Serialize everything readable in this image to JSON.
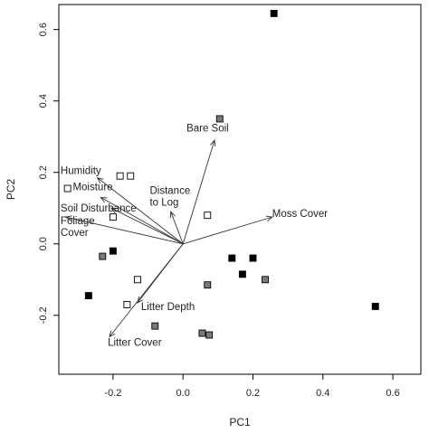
{
  "chart_data": {
    "type": "scatter",
    "title": "",
    "xlabel": "PC1",
    "ylabel": "PC2",
    "xlim": [
      -0.355,
      0.68
    ],
    "ylim": [
      -0.365,
      0.67
    ],
    "x_ticks": [
      -0.2,
      0.0,
      0.2,
      0.4,
      0.6
    ],
    "x_tick_labels": [
      "-0.2",
      "0.0",
      "0.2",
      "0.4",
      "0.6"
    ],
    "y_ticks": [
      -0.2,
      0.0,
      0.2,
      0.4,
      0.6
    ],
    "y_tick_labels": [
      "-0.2",
      "0.0",
      "0.2",
      "0.4",
      "0.6"
    ],
    "grid": false,
    "legend": "none",
    "series": [
      {
        "marker": "filled-square",
        "color": "#000000",
        "points": [
          {
            "x": 0.26,
            "y": 0.645
          },
          {
            "x": -0.2,
            "y": -0.02
          },
          {
            "x": -0.27,
            "y": -0.145
          },
          {
            "x": 0.14,
            "y": -0.04
          },
          {
            "x": 0.2,
            "y": -0.04
          },
          {
            "x": 0.17,
            "y": -0.085
          },
          {
            "x": 0.55,
            "y": -0.175
          }
        ]
      },
      {
        "marker": "gray-square",
        "color": "#7a7a7a",
        "points": [
          {
            "x": 0.105,
            "y": 0.35
          },
          {
            "x": -0.23,
            "y": -0.035
          },
          {
            "x": 0.07,
            "y": -0.115
          },
          {
            "x": 0.235,
            "y": -0.1
          },
          {
            "x": -0.08,
            "y": -0.23
          },
          {
            "x": 0.055,
            "y": -0.25
          },
          {
            "x": 0.075,
            "y": -0.255
          }
        ]
      },
      {
        "marker": "open-square",
        "color": "#ffffff",
        "points": [
          {
            "x": -0.18,
            "y": 0.19
          },
          {
            "x": -0.15,
            "y": 0.19
          },
          {
            "x": -0.33,
            "y": 0.155
          },
          {
            "x": -0.2,
            "y": 0.075
          },
          {
            "x": 0.07,
            "y": 0.08
          },
          {
            "x": -0.13,
            "y": -0.1
          },
          {
            "x": -0.16,
            "y": -0.17
          }
        ]
      }
    ],
    "vectors": [
      {
        "label": "Bare Soil",
        "x": 0.09,
        "y": 0.29
      },
      {
        "label": "Humidity",
        "x": -0.245,
        "y": 0.185
      },
      {
        "label": "Moisture",
        "x": -0.235,
        "y": 0.13
      },
      {
        "label": "Soil Disturbance",
        "x": -0.205,
        "y": 0.1
      },
      {
        "label": "Foliage Cover",
        "x": -0.335,
        "y": 0.075
      },
      {
        "label": "Distance to Log",
        "x": -0.035,
        "y": 0.09
      },
      {
        "label": "Moss Cover",
        "x": 0.255,
        "y": 0.075
      },
      {
        "label": "Litter Depth",
        "x": -0.13,
        "y": -0.165
      },
      {
        "label": "Litter Cover",
        "x": -0.21,
        "y": -0.26
      }
    ],
    "vector_text": [
      {
        "lines": [
          "Bare Soil"
        ],
        "x": 0.01,
        "y": 0.315,
        "anchor": "start"
      },
      {
        "lines": [
          "Humidity"
        ],
        "x": -0.35,
        "y": 0.195,
        "anchor": "start"
      },
      {
        "lines": [
          "Moisture"
        ],
        "x": -0.315,
        "y": 0.15,
        "anchor": "start"
      },
      {
        "lines": [
          "Distance",
          "to Log"
        ],
        "x": -0.095,
        "y": 0.14,
        "anchor": "start"
      },
      {
        "lines": [
          "Soil Disturbance"
        ],
        "x": -0.35,
        "y": 0.09,
        "anchor": "start"
      },
      {
        "lines": [
          "Foliage",
          "Cover"
        ],
        "x": -0.35,
        "y": 0.055,
        "anchor": "start"
      },
      {
        "lines": [
          "Moss Cover"
        ],
        "x": 0.255,
        "y": 0.075,
        "anchor": "start"
      },
      {
        "lines": [
          "Litter Depth"
        ],
        "x": -0.12,
        "y": -0.185,
        "anchor": "start"
      },
      {
        "lines": [
          "Litter Cover"
        ],
        "x": -0.215,
        "y": -0.285,
        "anchor": "start"
      }
    ]
  }
}
